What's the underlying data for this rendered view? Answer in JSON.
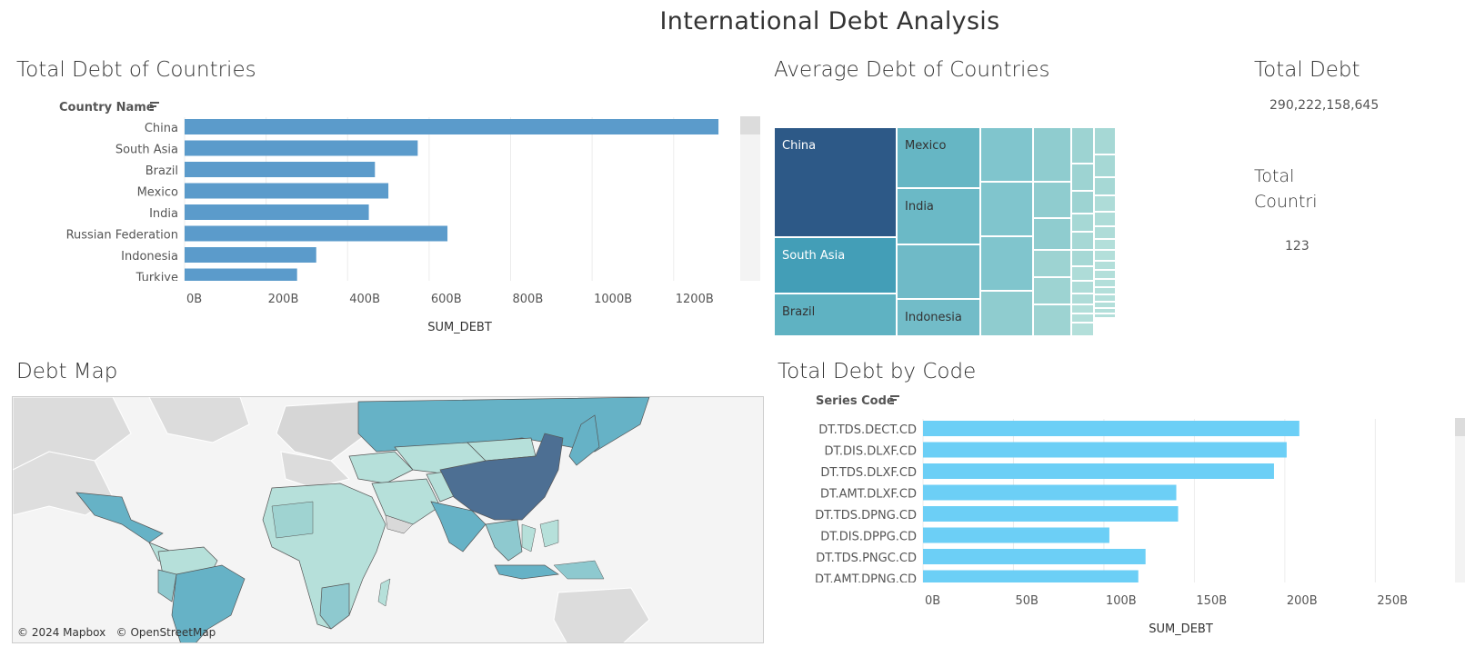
{
  "dashboard": {
    "title": "International Debt Analysis"
  },
  "total_debt_countries": {
    "title": "Total Debt of Countries",
    "header": "Country Name",
    "xlabel": "SUM_DEBT"
  },
  "average_debt": {
    "title": "Average Debt of Countries",
    "cells": [
      {
        "label": "China",
        "color": "#2d5987",
        "dark": false
      },
      {
        "label": "South Asia",
        "color": "#439eb7",
        "dark": false
      },
      {
        "label": "Brazil",
        "color": "#5fb2c2",
        "dark": true
      },
      {
        "label": "Mexico",
        "color": "#66b6c4",
        "dark": true
      },
      {
        "label": "India",
        "color": "#6bb9c6",
        "dark": true
      },
      {
        "label": "Indonesia",
        "color": "#72bcc8",
        "dark": true
      }
    ]
  },
  "kpi": {
    "total_debt_title": "Total Debt",
    "total_debt_value": "290,222,158,645",
    "total_countries_title_line1": "Total",
    "total_countries_title_line2": "Countri",
    "total_countries_value": "123"
  },
  "debt_map": {
    "title": "Debt Map",
    "attribution_1": "© 2024 Mapbox",
    "attribution_2": "© OpenStreetMap",
    "colors": {
      "china": "#4d6f93",
      "high": "#66b2c6",
      "mid": "#8ec9cf",
      "low": "#b6e0da",
      "nodata": "#d9d9d9"
    }
  },
  "total_debt_code": {
    "title": "Total Debt by Code",
    "header": "Series Code",
    "xlabel": "SUM_DEBT"
  },
  "chart_data": [
    {
      "type": "bar",
      "orientation": "horizontal",
      "title": "Total Debt of Countries",
      "categories": [
        "China",
        "South Asia",
        "Brazil",
        "Mexico",
        "India",
        "Russian Federation",
        "Indonesia",
        "Turkiye"
      ],
      "values": [
        1310,
        572,
        467,
        500,
        452,
        645,
        323,
        276
      ],
      "unit": "B",
      "xlabel": "SUM_DEBT",
      "ylabel": "Country Name",
      "xlim": [
        0,
        1350
      ],
      "ticks": [
        "0B",
        "200B",
        "400B",
        "600B",
        "800B",
        "1000B",
        "1200B"
      ],
      "tick_values": [
        0,
        200,
        400,
        600,
        800,
        1000,
        1200
      ],
      "color": "#5b9bcb"
    },
    {
      "type": "bar",
      "orientation": "horizontal",
      "title": "Total Debt by Code",
      "categories": [
        "DT.TDS.DECT.CD",
        "DT.DIS.DLXF.CD",
        "DT.TDS.DLXF.CD",
        "DT.AMT.DLXF.CD",
        "DT.TDS.DPNG.CD",
        "DT.DIS.DPPG.CD",
        "DT.TDS.PNGC.CD",
        "DT.AMT.DPNG.CD"
      ],
      "values": [
        208,
        201,
        194,
        140,
        141,
        103,
        123,
        119
      ],
      "unit": "B",
      "xlabel": "SUM_DEBT",
      "ylabel": "Series Code",
      "xlim": [
        0,
        285
      ],
      "ticks": [
        "0B",
        "50B",
        "100B",
        "150B",
        "200B",
        "250B"
      ],
      "tick_values": [
        0,
        50,
        100,
        150,
        200,
        250
      ],
      "color": "#6ccff6"
    }
  ]
}
